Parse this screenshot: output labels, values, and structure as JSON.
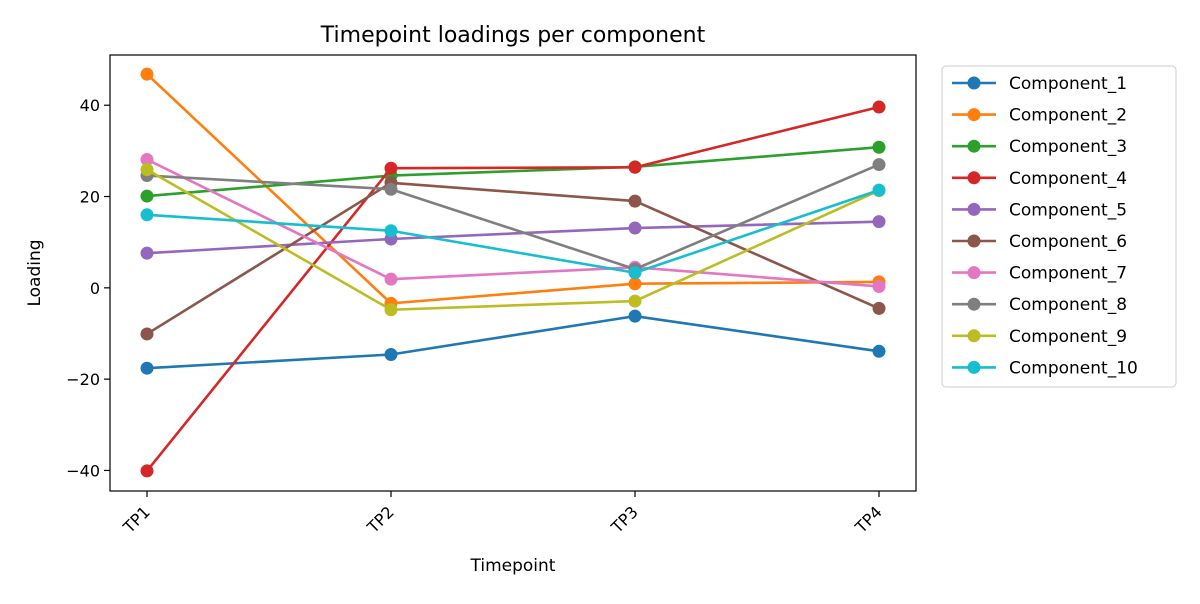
{
  "chart_data": {
    "type": "line",
    "title": "Timepoint loadings per component",
    "xlabel": "Timepoint",
    "ylabel": "Loading",
    "categories": [
      "TP1",
      "TP2",
      "TP3",
      "TP4"
    ],
    "ylim": [
      -44.5,
      51
    ],
    "yticks": [
      -40,
      -20,
      0,
      20,
      40
    ],
    "ytick_labels": [
      "−40",
      "−20",
      "0",
      "20",
      "40"
    ],
    "grid": false,
    "legend_position": "outside-right-top",
    "series": [
      {
        "name": "Component_1",
        "color": "#1f77b4",
        "values": [
          -17.6,
          -14.6,
          -6.2,
          -13.9
        ]
      },
      {
        "name": "Component_2",
        "color": "#ff7f0e",
        "values": [
          46.8,
          -3.4,
          0.9,
          1.3
        ]
      },
      {
        "name": "Component_3",
        "color": "#2ca02c",
        "values": [
          20.1,
          24.6,
          26.5,
          30.8
        ]
      },
      {
        "name": "Component_4",
        "color": "#d62728",
        "values": [
          -40.1,
          26.2,
          26.4,
          39.6
        ]
      },
      {
        "name": "Component_5",
        "color": "#9467bd",
        "values": [
          7.6,
          10.7,
          13.1,
          14.5
        ]
      },
      {
        "name": "Component_6",
        "color": "#8c564b",
        "values": [
          -10.1,
          23.0,
          19.0,
          -4.5
        ]
      },
      {
        "name": "Component_7",
        "color": "#e377c2",
        "values": [
          28.1,
          1.9,
          4.5,
          0.3
        ]
      },
      {
        "name": "Component_8",
        "color": "#7f7f7f",
        "values": [
          24.6,
          21.6,
          4.1,
          27.0
        ]
      },
      {
        "name": "Component_9",
        "color": "#bcbd22",
        "values": [
          25.9,
          -4.8,
          -2.9,
          21.3
        ]
      },
      {
        "name": "Component_10",
        "color": "#17becf",
        "values": [
          16.0,
          12.5,
          3.3,
          21.4
        ]
      }
    ]
  }
}
